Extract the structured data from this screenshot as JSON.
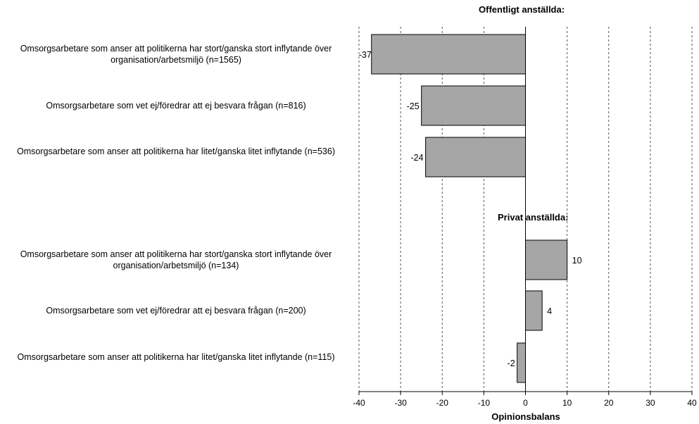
{
  "chart_data": {
    "type": "bar",
    "orientation": "horizontal",
    "xlabel": "Opinionsbalans",
    "xlim": [
      -40,
      40
    ],
    "xticks": [
      -40,
      -30,
      -20,
      -10,
      0,
      10,
      20,
      30,
      40
    ],
    "grid": "vertical-dashed",
    "groups": [
      {
        "title": "Offentligt anställda:",
        "categories": [
          "Omsorgsarbetare som anser att politikerna har stort/ganska stort inflytande över organisation/arbetsmiljö (n=1565)",
          "Omsorgsarbetare som vet ej/föredrar att ej besvara frågan (n=816)",
          "Omsorgsarbetare som anser att politikerna har litet/ganska litet inflytande (n=536)"
        ],
        "values": [
          -37,
          -25,
          -24
        ]
      },
      {
        "title": "Privat anställda:",
        "categories": [
          "Omsorgsarbetare som anser att politikerna har stort/ganska stort inflytande över organisation/arbetsmiljö (n=134)",
          "Omsorgsarbetare som vet ej/föredrar att ej besvara frågan (n=200)",
          "Omsorgsarbetare som anser att politikerna har litet/ganska litet inflytande (n=115)"
        ],
        "values": [
          10,
          4,
          -2
        ]
      }
    ],
    "colors": {
      "bar_fill": "#a6a6a6",
      "bar_stroke": "#000000",
      "grid": "#555555"
    }
  }
}
